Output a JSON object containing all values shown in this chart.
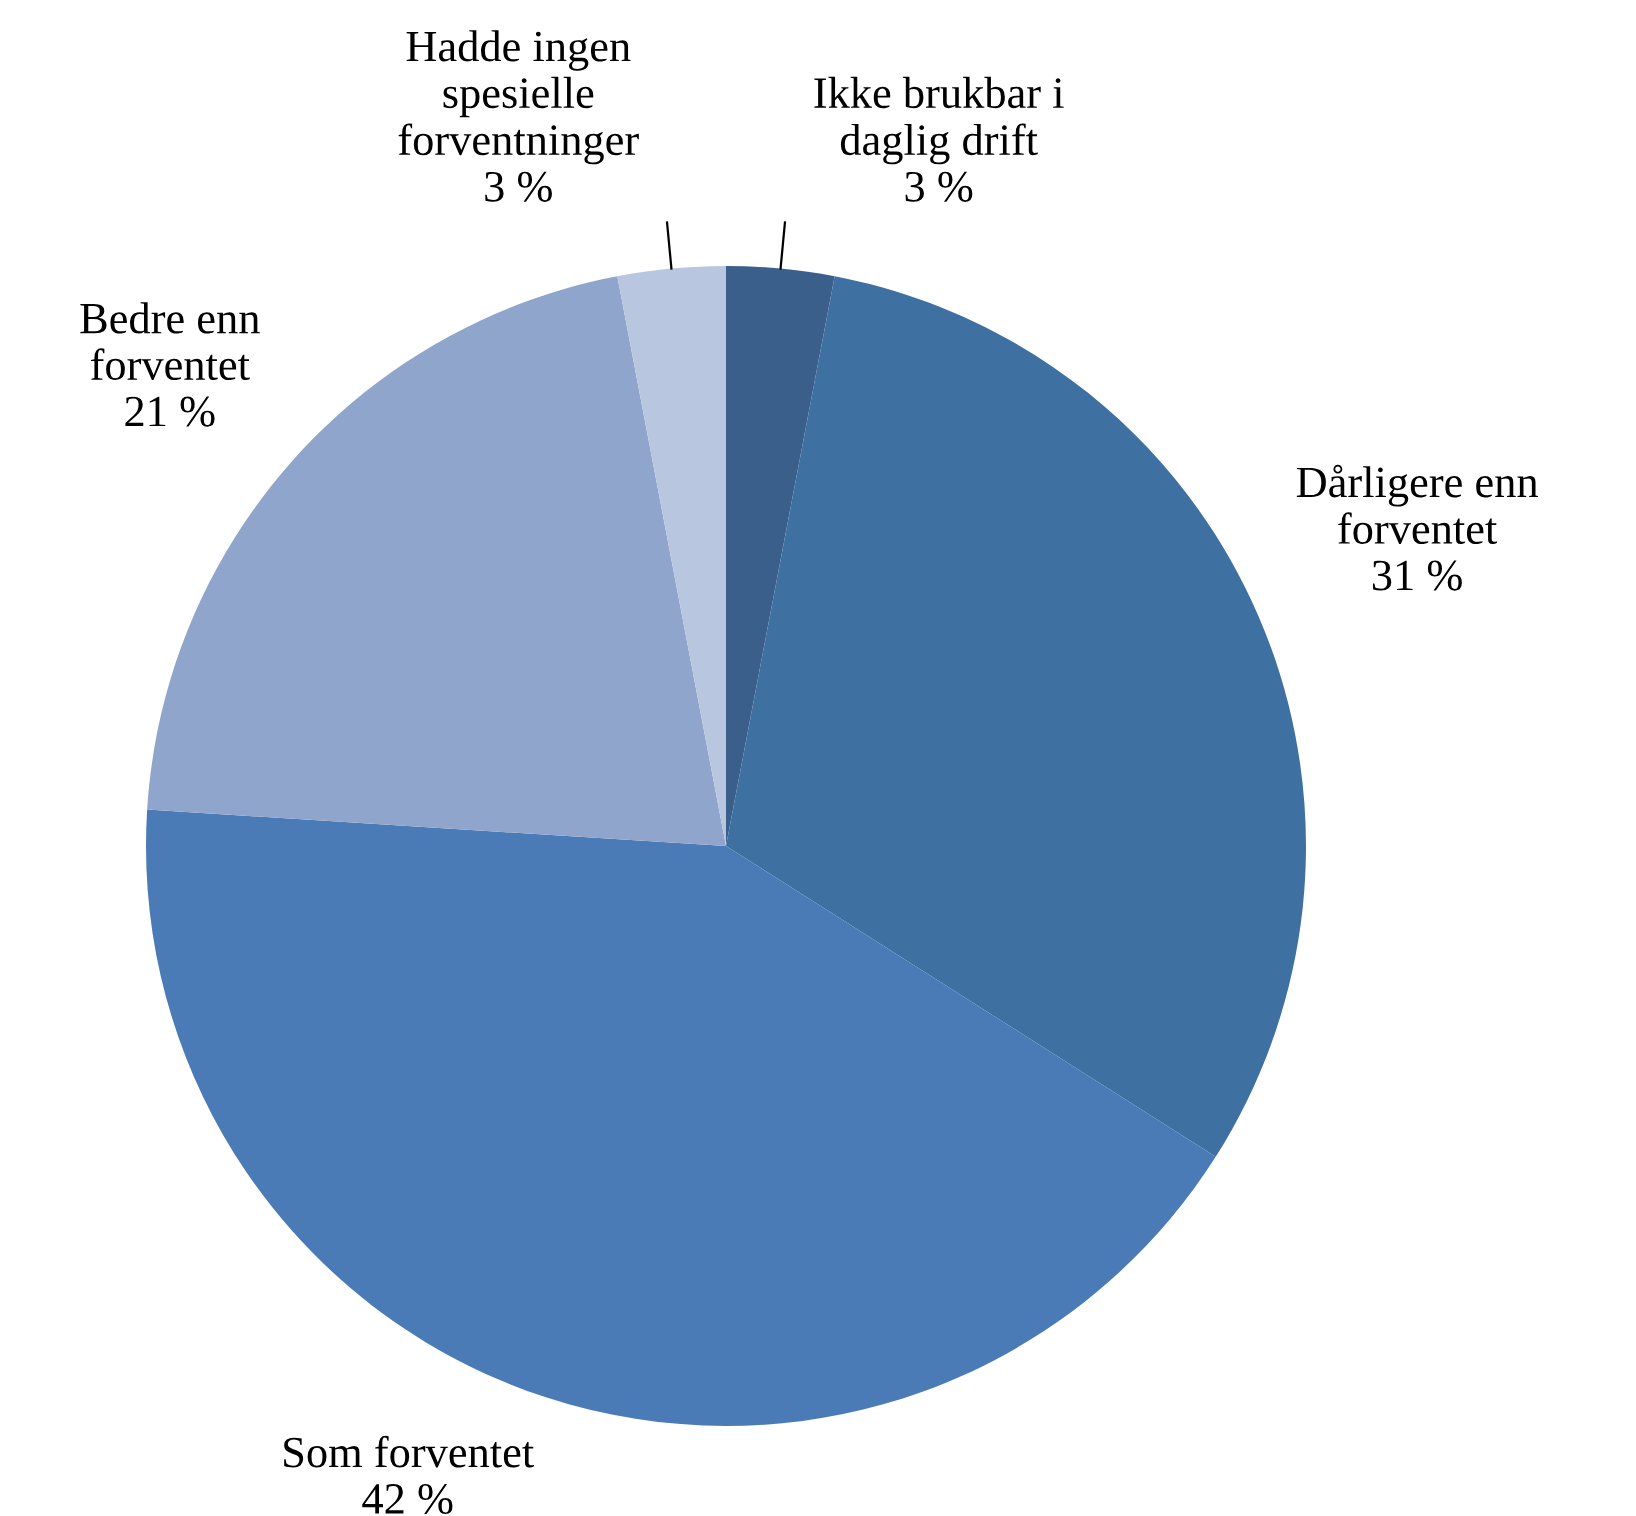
{
  "chart_data": {
    "type": "pie",
    "categories": [
      "Ikke brukbar i\ndaglig drift",
      "Dårligere enn\nforventet",
      "Som forventet",
      "Bedre enn\nforventet",
      "Hadde ingen\nspesielle\nforventninger"
    ],
    "values": [
      3,
      31,
      42,
      21,
      3
    ],
    "value_labels": [
      "3 %",
      "31 %",
      "42 %",
      "21 %",
      "3 %"
    ],
    "colors": [
      "#3a5f8b",
      "#3e70a2",
      "#4a7bb6",
      "#8fa5cb",
      "#b9c6df"
    ]
  }
}
